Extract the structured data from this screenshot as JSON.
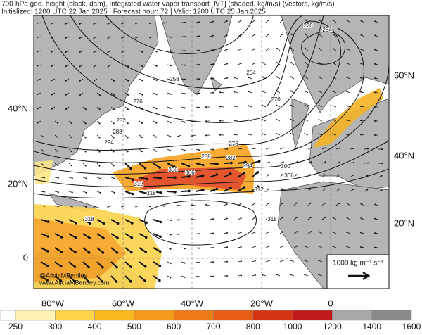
{
  "header": {
    "title": "700-hPa geo. height (black, dam), Integrated water vapor transport [IVT] (shaded, kg/m/s) (vectors, kg/m/s)",
    "subtitle": "Initialized: 1200 UTC 22 Jan 2025 | Forecast hour: 72 | Valid: 1200 UTC 25 Jan 2025"
  },
  "map": {
    "lat_labels_left": [
      "40°N",
      "20°N",
      "0"
    ],
    "lat_labels_right": [
      "60°N",
      "40°N",
      "20°N"
    ],
    "lon_labels": [
      "80°W",
      "60°W",
      "40°W",
      "20°W",
      "0"
    ],
    "contour_labels": [
      "270",
      "264",
      "264",
      "258",
      "276",
      "270",
      "282",
      "288",
      "294",
      "276",
      "288",
      "282",
      "294",
      "300",
      "306",
      "300",
      "306",
      "312",
      "318",
      "312",
      "318",
      "318"
    ],
    "watermark": [
      "@AliciaMBentley",
      "www.AliciaMBentley.com"
    ],
    "vector_key": "1000 kg m⁻¹ s⁻¹"
  },
  "colorbar": {
    "ticks": [
      250,
      300,
      400,
      500,
      600,
      700,
      800,
      1000,
      1200,
      1400,
      1600
    ],
    "colors": [
      "#fff3b3",
      "#fcd34a",
      "#f9b820",
      "#f59a1a",
      "#ef7b18",
      "#e65c15",
      "#d63515",
      "#c01a1a",
      "#a8a8a8",
      "#8a8a8a"
    ]
  }
}
